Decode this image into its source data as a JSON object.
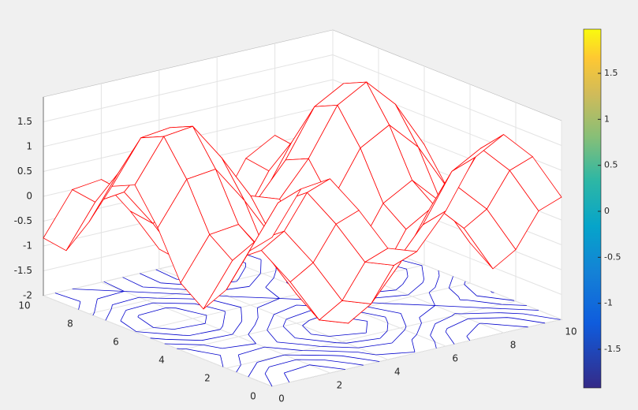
{
  "chart_data": {
    "type": "mesh",
    "x": [
      0,
      1,
      2,
      3,
      4,
      5,
      6,
      7,
      8,
      9,
      10
    ],
    "y": [
      0,
      1,
      2,
      3,
      4,
      5,
      6,
      7,
      8,
      9,
      10
    ],
    "z": [
      [
        1,
        1.84,
        1.91,
        1.14,
        0.24,
        0.04,
        0.72,
        1.66,
        1.99,
        1.41,
        0.46
      ],
      [
        0.54,
        1.38,
        1.45,
        0.68,
        -0.22,
        -0.42,
        0.26,
        1.2,
        1.53,
        0.95,
        0
      ],
      [
        -0.42,
        0.42,
        0.49,
        -0.28,
        -1.18,
        -1.38,
        -0.7,
        0.24,
        0.57,
        -0.01,
        -0.96
      ],
      [
        -0.99,
        -0.15,
        -0.08,
        -0.85,
        -1.75,
        -1.95,
        -1.27,
        -0.33,
        0,
        -0.58,
        -1.53
      ],
      [
        -0.65,
        0.19,
        0.26,
        -0.51,
        -1.41,
        -1.61,
        -0.93,
        0.01,
        0.34,
        -0.24,
        -1.19
      ],
      [
        0.28,
        1.12,
        1.19,
        0.42,
        -0.48,
        -0.68,
        0,
        0.94,
        1.27,
        0.69,
        -0.26
      ],
      [
        0.96,
        1.8,
        1.87,
        1.1,
        0.2,
        0,
        0.68,
        1.62,
        1.95,
        1.37,
        0.42
      ],
      [
        0.75,
        1.59,
        1.66,
        0.89,
        -0.01,
        -0.21,
        0.47,
        1.41,
        1.74,
        1.16,
        0.21
      ],
      [
        -0.15,
        0.69,
        0.76,
        -0.01,
        -0.91,
        -1.11,
        -0.43,
        0.51,
        0.84,
        0.26,
        -0.69
      ],
      [
        -0.91,
        -0.07,
        0,
        -0.77,
        -1.67,
        -1.87,
        -1.19,
        -0.25,
        0.08,
        -0.5,
        -1.45
      ],
      [
        -0.84,
        0,
        0.07,
        -0.7,
        -1.6,
        -1.8,
        -1.12,
        -0.18,
        0.15,
        -0.43,
        -1.38
      ]
    ],
    "mesh_color": "#ff0000",
    "contour_color": "#0000cc",
    "contour_levels": [
      -1.5,
      -1,
      -0.5,
      0,
      0.5,
      1,
      1.5
    ],
    "xlim": [
      0,
      10
    ],
    "xticks": [
      0,
      2,
      4,
      6,
      8,
      10
    ],
    "ylim": [
      0,
      10
    ],
    "yticks": [
      0,
      2,
      4,
      6,
      8,
      10
    ],
    "zlim": [
      -2,
      2
    ],
    "zticks": [
      -2,
      -1.5,
      -1,
      -0.5,
      0,
      0.5,
      1,
      1.5
    ],
    "grid": true,
    "colorbar": {
      "clim": [
        -1.92,
        1.98
      ],
      "ticks": [
        -1.5,
        -1,
        -0.5,
        0,
        0.5,
        1,
        1.5
      ]
    }
  }
}
